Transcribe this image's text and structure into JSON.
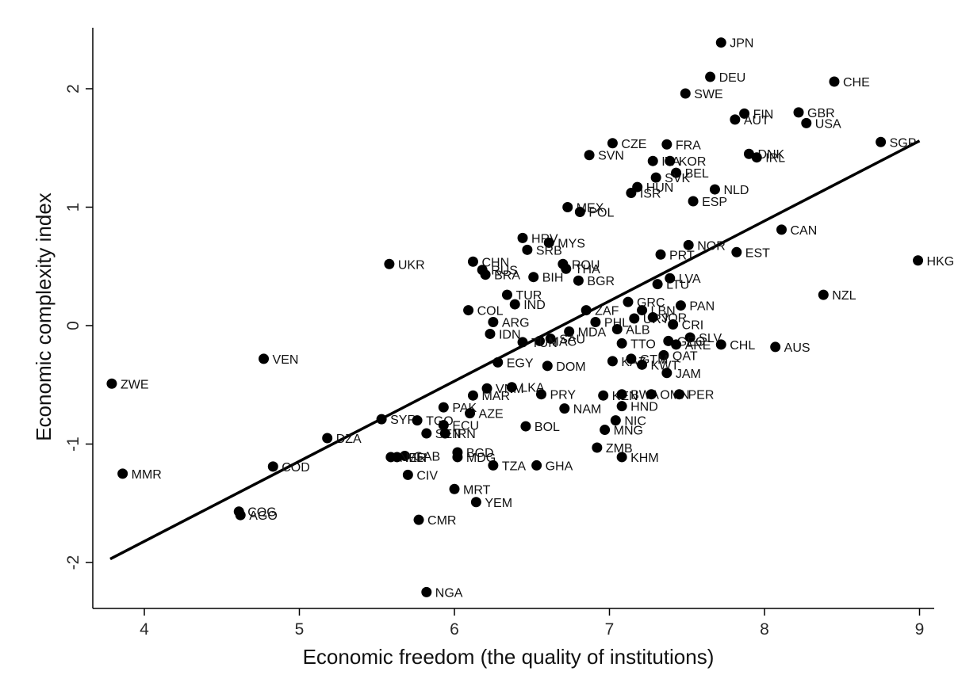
{
  "chart_data": {
    "type": "scatter",
    "title": "",
    "xlabel": "Economic freedom (the quality of institutions)",
    "ylabel": "Economic complexity index",
    "xlim": [
      3.7,
      9.1
    ],
    "ylim": [
      -2.35,
      2.5
    ],
    "xticks": [
      4,
      5,
      6,
      7,
      8,
      9
    ],
    "yticks": [
      -2,
      -1,
      0,
      1,
      2
    ],
    "grid": false,
    "legend": "none",
    "marker_color": "#000000",
    "fit_line": {
      "x": [
        3.78,
        9.0
      ],
      "y": [
        -1.97,
        1.56
      ]
    },
    "points": [
      {
        "label": "JPN",
        "x": 7.72,
        "y": 2.39
      },
      {
        "label": "DEU",
        "x": 7.65,
        "y": 2.1
      },
      {
        "label": "CHE",
        "x": 8.45,
        "y": 2.06
      },
      {
        "label": "SWE",
        "x": 7.49,
        "y": 1.96
      },
      {
        "label": "FIN",
        "x": 7.87,
        "y": 1.79
      },
      {
        "label": "GBR",
        "x": 8.22,
        "y": 1.8
      },
      {
        "label": "AUT",
        "x": 7.81,
        "y": 1.74
      },
      {
        "label": "USA",
        "x": 8.27,
        "y": 1.71
      },
      {
        "label": "SGP",
        "x": 8.75,
        "y": 1.55
      },
      {
        "label": "CZE",
        "x": 7.02,
        "y": 1.54
      },
      {
        "label": "FRA",
        "x": 7.37,
        "y": 1.53
      },
      {
        "label": "SVN",
        "x": 6.87,
        "y": 1.44
      },
      {
        "label": "DNK",
        "x": 7.9,
        "y": 1.45
      },
      {
        "label": "IRL",
        "x": 7.95,
        "y": 1.42
      },
      {
        "label": "ITA",
        "x": 7.28,
        "y": 1.39
      },
      {
        "label": "KOR",
        "x": 7.39,
        "y": 1.39
      },
      {
        "label": "BEL",
        "x": 7.43,
        "y": 1.29
      },
      {
        "label": "SVK",
        "x": 7.3,
        "y": 1.25
      },
      {
        "label": "HUN",
        "x": 7.18,
        "y": 1.17
      },
      {
        "label": "NLD",
        "x": 7.68,
        "y": 1.15
      },
      {
        "label": "ISR",
        "x": 7.14,
        "y": 1.12
      },
      {
        "label": "ESP",
        "x": 7.54,
        "y": 1.05
      },
      {
        "label": "MEX",
        "x": 6.73,
        "y": 1.0
      },
      {
        "label": "POL",
        "x": 6.81,
        "y": 0.96
      },
      {
        "label": "CAN",
        "x": 8.11,
        "y": 0.81
      },
      {
        "label": "HRV",
        "x": 6.44,
        "y": 0.74
      },
      {
        "label": "MYS",
        "x": 6.61,
        "y": 0.7
      },
      {
        "label": "NOR",
        "x": 7.51,
        "y": 0.68
      },
      {
        "label": "SRB",
        "x": 6.47,
        "y": 0.64
      },
      {
        "label": "EST",
        "x": 7.82,
        "y": 0.62
      },
      {
        "label": "PRT",
        "x": 7.33,
        "y": 0.6
      },
      {
        "label": "HKG",
        "x": 8.99,
        "y": 0.55
      },
      {
        "label": "UKR",
        "x": 5.58,
        "y": 0.52
      },
      {
        "label": "CHN",
        "x": 6.12,
        "y": 0.54
      },
      {
        "label": "ROU",
        "x": 6.7,
        "y": 0.52
      },
      {
        "label": "RUS",
        "x": 6.18,
        "y": 0.47
      },
      {
        "label": "THA",
        "x": 6.72,
        "y": 0.48
      },
      {
        "label": "BRA",
        "x": 6.2,
        "y": 0.43
      },
      {
        "label": "BIH",
        "x": 6.51,
        "y": 0.41
      },
      {
        "label": "LVA",
        "x": 7.39,
        "y": 0.4
      },
      {
        "label": "BGR",
        "x": 6.8,
        "y": 0.38
      },
      {
        "label": "LTU",
        "x": 7.31,
        "y": 0.35
      },
      {
        "label": "NZL",
        "x": 8.38,
        "y": 0.26
      },
      {
        "label": "TUR",
        "x": 6.34,
        "y": 0.26
      },
      {
        "label": "GRC",
        "x": 7.12,
        "y": 0.2
      },
      {
        "label": "IND",
        "x": 6.39,
        "y": 0.18
      },
      {
        "label": "PAN",
        "x": 7.46,
        "y": 0.17
      },
      {
        "label": "COL",
        "x": 6.09,
        "y": 0.13
      },
      {
        "label": "ZAF",
        "x": 6.85,
        "y": 0.13
      },
      {
        "label": "LBN",
        "x": 7.21,
        "y": 0.13
      },
      {
        "label": "PHL",
        "x": 6.91,
        "y": 0.03
      },
      {
        "label": "URY",
        "x": 7.16,
        "y": 0.06
      },
      {
        "label": "JOR",
        "x": 7.28,
        "y": 0.07
      },
      {
        "label": "ARG",
        "x": 6.25,
        "y": 0.03
      },
      {
        "label": "CRI",
        "x": 7.41,
        "y": 0.01
      },
      {
        "label": "ALB",
        "x": 7.05,
        "y": -0.03
      },
      {
        "label": "MDA",
        "x": 6.74,
        "y": -0.05
      },
      {
        "label": "IDN",
        "x": 6.23,
        "y": -0.07
      },
      {
        "label": "SLV",
        "x": 7.52,
        "y": -0.1
      },
      {
        "label": "GEO",
        "x": 7.38,
        "y": -0.13
      },
      {
        "label": "SAU",
        "x": 6.62,
        "y": -0.11
      },
      {
        "label": "MAC",
        "x": 6.55,
        "y": -0.13
      },
      {
        "label": "TUN",
        "x": 6.44,
        "y": -0.14
      },
      {
        "label": "TTO",
        "x": 7.08,
        "y": -0.15
      },
      {
        "label": "ARE",
        "x": 7.43,
        "y": -0.16
      },
      {
        "label": "CHL",
        "x": 7.72,
        "y": -0.16
      },
      {
        "label": "AUS",
        "x": 8.07,
        "y": -0.18
      },
      {
        "label": "VEN",
        "x": 4.77,
        "y": -0.28
      },
      {
        "label": "QAT",
        "x": 7.35,
        "y": -0.25
      },
      {
        "label": "KAZ",
        "x": 7.02,
        "y": -0.3
      },
      {
        "label": "GTM",
        "x": 7.14,
        "y": -0.28
      },
      {
        "label": "EGY",
        "x": 6.28,
        "y": -0.31
      },
      {
        "label": "KWT",
        "x": 7.21,
        "y": -0.33
      },
      {
        "label": "DOM",
        "x": 6.6,
        "y": -0.34
      },
      {
        "label": "JAM",
        "x": 7.37,
        "y": -0.4
      },
      {
        "label": "ZWE",
        "x": 3.79,
        "y": -0.49
      },
      {
        "label": "VNM",
        "x": 6.21,
        "y": -0.53
      },
      {
        "label": "LKA",
        "x": 6.37,
        "y": -0.52
      },
      {
        "label": "MAR",
        "x": 6.12,
        "y": -0.59
      },
      {
        "label": "PRY",
        "x": 6.56,
        "y": -0.58
      },
      {
        "label": "KEN",
        "x": 6.96,
        "y": -0.59
      },
      {
        "label": "BWA",
        "x": 7.08,
        "y": -0.58
      },
      {
        "label": "OMN",
        "x": 7.27,
        "y": -0.58
      },
      {
        "label": "PER",
        "x": 7.45,
        "y": -0.58
      },
      {
        "label": "PAK",
        "x": 5.93,
        "y": -0.69
      },
      {
        "label": "HND",
        "x": 7.08,
        "y": -0.68
      },
      {
        "label": "NAM",
        "x": 6.71,
        "y": -0.7
      },
      {
        "label": "AZE",
        "x": 6.1,
        "y": -0.74
      },
      {
        "label": "SYR",
        "x": 5.53,
        "y": -0.79
      },
      {
        "label": "TGO",
        "x": 5.76,
        "y": -0.8
      },
      {
        "label": "NIC",
        "x": 7.04,
        "y": -0.8
      },
      {
        "label": "ECU",
        "x": 5.93,
        "y": -0.84
      },
      {
        "label": "BOL",
        "x": 6.46,
        "y": -0.85
      },
      {
        "label": "MNG",
        "x": 6.97,
        "y": -0.88
      },
      {
        "label": "SEN",
        "x": 5.82,
        "y": -0.91
      },
      {
        "label": "IRN",
        "x": 5.94,
        "y": -0.91
      },
      {
        "label": "DZA",
        "x": 5.18,
        "y": -0.95
      },
      {
        "label": "ZMB",
        "x": 6.92,
        "y": -1.03
      },
      {
        "label": "BGD",
        "x": 6.02,
        "y": -1.07
      },
      {
        "label": "GAB",
        "x": 5.68,
        "y": -1.1
      },
      {
        "label": "MDG",
        "x": 6.02,
        "y": -1.11
      },
      {
        "label": "KHM",
        "x": 7.08,
        "y": -1.11
      },
      {
        "label": "NER",
        "x": 5.59,
        "y": -1.11
      },
      {
        "label": "MLI",
        "x": 5.63,
        "y": -1.11
      },
      {
        "label": "TZA",
        "x": 6.25,
        "y": -1.18
      },
      {
        "label": "GHA",
        "x": 6.53,
        "y": -1.18
      },
      {
        "label": "COD",
        "x": 4.83,
        "y": -1.19
      },
      {
        "label": "MMR",
        "x": 3.86,
        "y": -1.25
      },
      {
        "label": "CIV",
        "x": 5.7,
        "y": -1.26
      },
      {
        "label": "MRT",
        "x": 6.0,
        "y": -1.38
      },
      {
        "label": "YEM",
        "x": 6.14,
        "y": -1.49
      },
      {
        "label": "COG",
        "x": 4.61,
        "y": -1.57
      },
      {
        "label": "AGO",
        "x": 4.62,
        "y": -1.6
      },
      {
        "label": "CMR",
        "x": 5.77,
        "y": -1.64
      },
      {
        "label": "NGA",
        "x": 5.82,
        "y": -2.25
      }
    ]
  }
}
